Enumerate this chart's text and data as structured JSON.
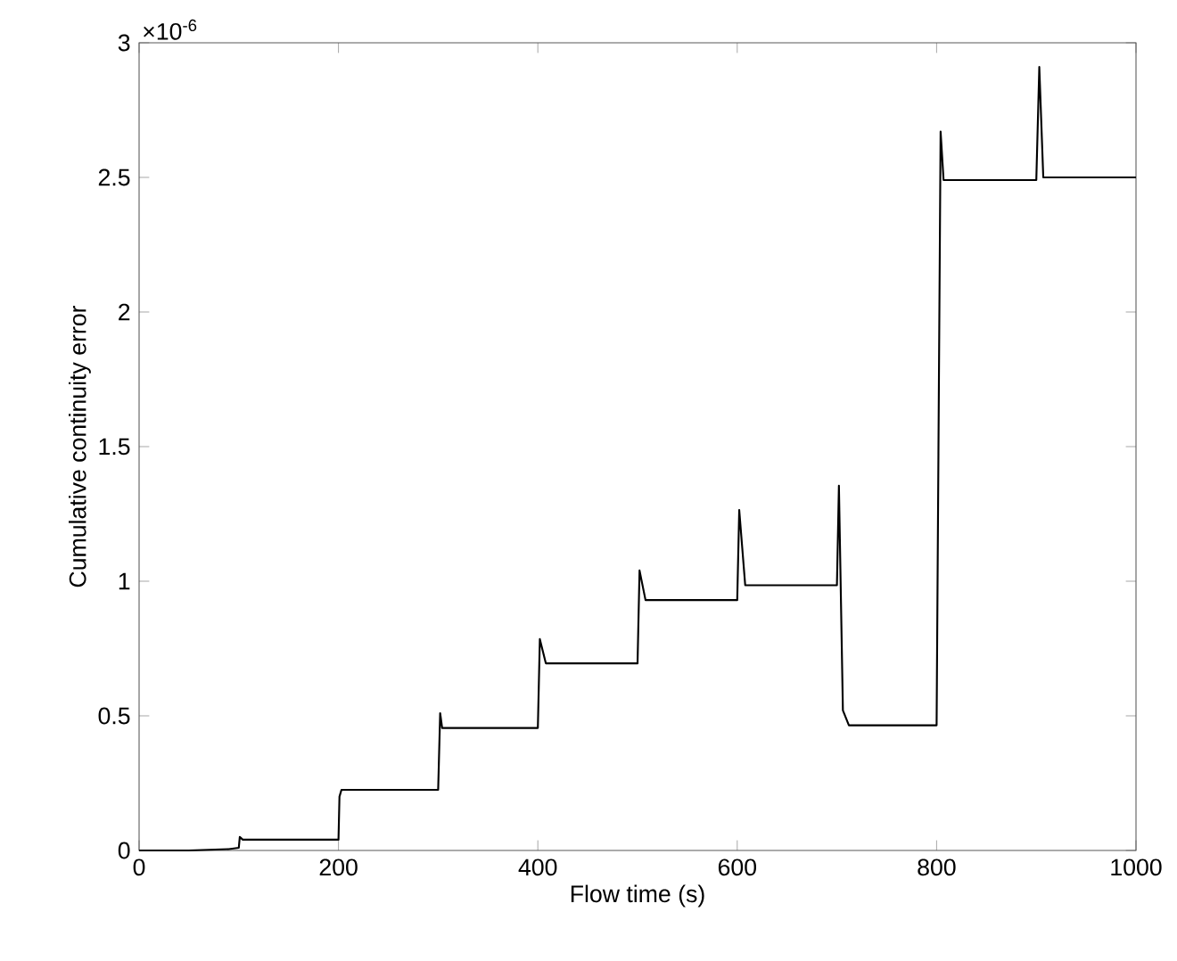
{
  "chart_data": {
    "type": "line",
    "xlabel": "Flow time (s)",
    "ylabel": "Cumulative continuity error",
    "annotations": [
      "×10$^{-6}$"
    ],
    "x": [
      0,
      50,
      90,
      100,
      101,
      104,
      200,
      201,
      203,
      300,
      302,
      304,
      400,
      402,
      408,
      500,
      502,
      508,
      600,
      602,
      608,
      700,
      702,
      706,
      712,
      800,
      804,
      807,
      900,
      903,
      907,
      1000
    ],
    "values": [
      0,
      0,
      0.005,
      0.01,
      0.05,
      0.04,
      0.04,
      0.2,
      0.225,
      0.225,
      0.51,
      0.455,
      0.455,
      0.785,
      0.695,
      0.695,
      1.04,
      0.93,
      0.93,
      1.265,
      0.985,
      0.985,
      1.355,
      0.52,
      0.465,
      0.465,
      2.67,
      2.49,
      2.49,
      2.91,
      2.5,
      2.5
    ],
    "color": "#000000",
    "xlim": [
      0,
      1000
    ],
    "ylim": [
      0,
      3
    ],
    "xticks": [
      0,
      200,
      400,
      600,
      800,
      1000
    ],
    "yticks": [
      0,
      0.5,
      1,
      1.5,
      2,
      2.5,
      3
    ]
  }
}
